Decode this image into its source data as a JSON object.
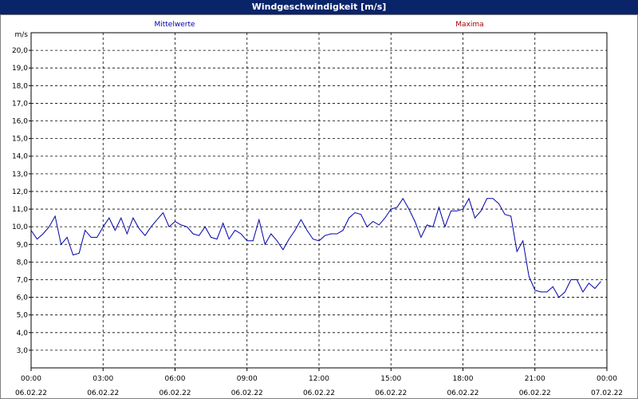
{
  "window": {
    "title": "Windgeschwindigkeit [m/s]"
  },
  "colors": {
    "mean": "#0000aa",
    "max": "#aa0000",
    "grid": "#000000",
    "titlebar": "#0a246a"
  },
  "chart_data": {
    "type": "line",
    "title": "Windgeschwindigkeit [m/s]",
    "ylabel": "m/s",
    "xlabel": "",
    "ylim": [
      2.0,
      21.0
    ],
    "yticks": [
      3.0,
      4.0,
      5.0,
      6.0,
      7.0,
      8.0,
      9.0,
      10.0,
      11.0,
      12.0,
      13.0,
      14.0,
      15.0,
      16.0,
      17.0,
      18.0,
      19.0,
      20.0
    ],
    "ytick_labels": [
      "3,0",
      "4,0",
      "5,0",
      "6,0",
      "7,0",
      "8,0",
      "9,0",
      "10,0",
      "11,0",
      "12,0",
      "13,0",
      "14,0",
      "15,0",
      "16,0",
      "17,0",
      "18,0",
      "19,0",
      "20,0"
    ],
    "xlim": [
      "06.02.22 00:00",
      "07.02.22 00:00"
    ],
    "xticks": [
      {
        "time": "00:00",
        "date": "06.02.22"
      },
      {
        "time": "03:00",
        "date": "06.02.22"
      },
      {
        "time": "06:00",
        "date": "06.02.22"
      },
      {
        "time": "09:00",
        "date": "06.02.22"
      },
      {
        "time": "12:00",
        "date": "06.02.22"
      },
      {
        "time": "15:00",
        "date": "06.02.22"
      },
      {
        "time": "18:00",
        "date": "06.02.22"
      },
      {
        "time": "21:00",
        "date": "06.02.22"
      },
      {
        "time": "00:00",
        "date": "07.02.22"
      }
    ],
    "grid": true,
    "legend_position": "top",
    "series": [
      {
        "name": "Mittelwerte",
        "color": "#0000aa",
        "points": [
          [
            "06.02.22 00:00",
            9.8
          ],
          [
            "06.02.22 00:15",
            9.3
          ],
          [
            "06.02.22 00:30",
            9.6
          ],
          [
            "06.02.22 00:45",
            10.0
          ],
          [
            "06.02.22 01:00",
            10.6
          ],
          [
            "06.02.22 01:15",
            9.0
          ],
          [
            "06.02.22 01:30",
            9.4
          ],
          [
            "06.02.22 01:45",
            8.4
          ],
          [
            "06.02.22 02:00",
            8.5
          ],
          [
            "06.02.22 02:15",
            9.8
          ],
          [
            "06.02.22 02:30",
            9.4
          ],
          [
            "06.02.22 02:45",
            9.4
          ],
          [
            "06.02.22 03:00",
            10.0
          ],
          [
            "06.02.22 03:15",
            10.5
          ],
          [
            "06.02.22 03:30",
            9.8
          ],
          [
            "06.02.22 03:45",
            10.5
          ],
          [
            "06.02.22 04:00",
            9.6
          ],
          [
            "06.02.22 04:15",
            10.5
          ],
          [
            "06.02.22 04:30",
            9.9
          ],
          [
            "06.02.22 04:45",
            9.5
          ],
          [
            "06.02.22 05:00",
            10.0
          ],
          [
            "06.02.22 05:15",
            10.4
          ],
          [
            "06.02.22 05:30",
            10.8
          ],
          [
            "06.02.22 05:45",
            10.0
          ],
          [
            "06.02.22 06:00",
            10.3
          ],
          [
            "06.02.22 06:15",
            10.1
          ],
          [
            "06.02.22 06:30",
            10.0
          ],
          [
            "06.02.22 06:45",
            9.6
          ],
          [
            "06.02.22 07:00",
            9.5
          ],
          [
            "06.02.22 07:15",
            10.0
          ],
          [
            "06.02.22 07:30",
            9.4
          ],
          [
            "06.02.22 07:45",
            9.3
          ],
          [
            "06.02.22 08:00",
            10.2
          ],
          [
            "06.02.22 08:15",
            9.3
          ],
          [
            "06.02.22 08:30",
            9.8
          ],
          [
            "06.02.22 08:45",
            9.6
          ],
          [
            "06.02.22 09:00",
            9.2
          ],
          [
            "06.02.22 09:15",
            9.2
          ],
          [
            "06.02.22 09:30",
            10.4
          ],
          [
            "06.02.22 09:45",
            9.0
          ],
          [
            "06.02.22 10:00",
            9.6
          ],
          [
            "06.02.22 10:15",
            9.2
          ],
          [
            "06.02.22 10:30",
            8.7
          ],
          [
            "06.02.22 10:45",
            9.3
          ],
          [
            "06.02.22 11:00",
            9.8
          ],
          [
            "06.02.22 11:15",
            10.4
          ],
          [
            "06.02.22 11:30",
            9.8
          ],
          [
            "06.02.22 11:45",
            9.3
          ],
          [
            "06.02.22 12:00",
            9.2
          ],
          [
            "06.02.22 12:15",
            9.5
          ],
          [
            "06.02.22 12:30",
            9.6
          ],
          [
            "06.02.22 12:45",
            9.6
          ],
          [
            "06.02.22 13:00",
            9.8
          ],
          [
            "06.02.22 13:15",
            10.5
          ],
          [
            "06.02.22 13:30",
            10.8
          ],
          [
            "06.02.22 13:45",
            10.7
          ],
          [
            "06.02.22 14:00",
            10.0
          ],
          [
            "06.02.22 14:15",
            10.3
          ],
          [
            "06.02.22 14:30",
            10.1
          ],
          [
            "06.02.22 14:45",
            10.5
          ],
          [
            "06.02.22 15:00",
            11.0
          ],
          [
            "06.02.22 15:15",
            11.1
          ],
          [
            "06.02.22 15:30",
            11.6
          ],
          [
            "06.02.22 15:45",
            11.0
          ],
          [
            "06.02.22 16:00",
            10.3
          ],
          [
            "06.02.22 16:15",
            9.4
          ],
          [
            "06.02.22 16:30",
            10.1
          ],
          [
            "06.02.22 16:45",
            10.0
          ],
          [
            "06.02.22 17:00",
            11.1
          ],
          [
            "06.02.22 17:15",
            10.0
          ],
          [
            "06.02.22 17:30",
            10.9
          ],
          [
            "06.02.22 17:45",
            10.9
          ],
          [
            "06.02.22 18:00",
            11.0
          ],
          [
            "06.02.22 18:15",
            11.6
          ],
          [
            "06.02.22 18:30",
            10.5
          ],
          [
            "06.02.22 18:45",
            10.9
          ],
          [
            "06.02.22 19:00",
            11.6
          ],
          [
            "06.02.22 19:15",
            11.6
          ],
          [
            "06.02.22 19:30",
            11.3
          ],
          [
            "06.02.22 19:45",
            10.7
          ],
          [
            "06.02.22 20:00",
            10.6
          ],
          [
            "06.02.22 20:15",
            8.6
          ],
          [
            "06.02.22 20:30",
            9.2
          ],
          [
            "06.02.22 20:45",
            7.2
          ],
          [
            "06.02.22 21:00",
            6.4
          ],
          [
            "06.02.22 21:15",
            6.3
          ],
          [
            "06.02.22 21:30",
            6.3
          ],
          [
            "06.02.22 21:45",
            6.6
          ],
          [
            "06.02.22 22:00",
            6.0
          ],
          [
            "06.02.22 22:15",
            6.3
          ],
          [
            "06.02.22 22:30",
            7.0
          ],
          [
            "06.02.22 22:45",
            7.0
          ],
          [
            "06.02.22 23:00",
            6.3
          ],
          [
            "06.02.22 23:15",
            6.8
          ],
          [
            "06.02.22 23:30",
            6.5
          ],
          [
            "06.02.22 23:45",
            6.9
          ]
        ]
      },
      {
        "name": "Maxima",
        "color": "#aa0000",
        "points": []
      }
    ]
  }
}
